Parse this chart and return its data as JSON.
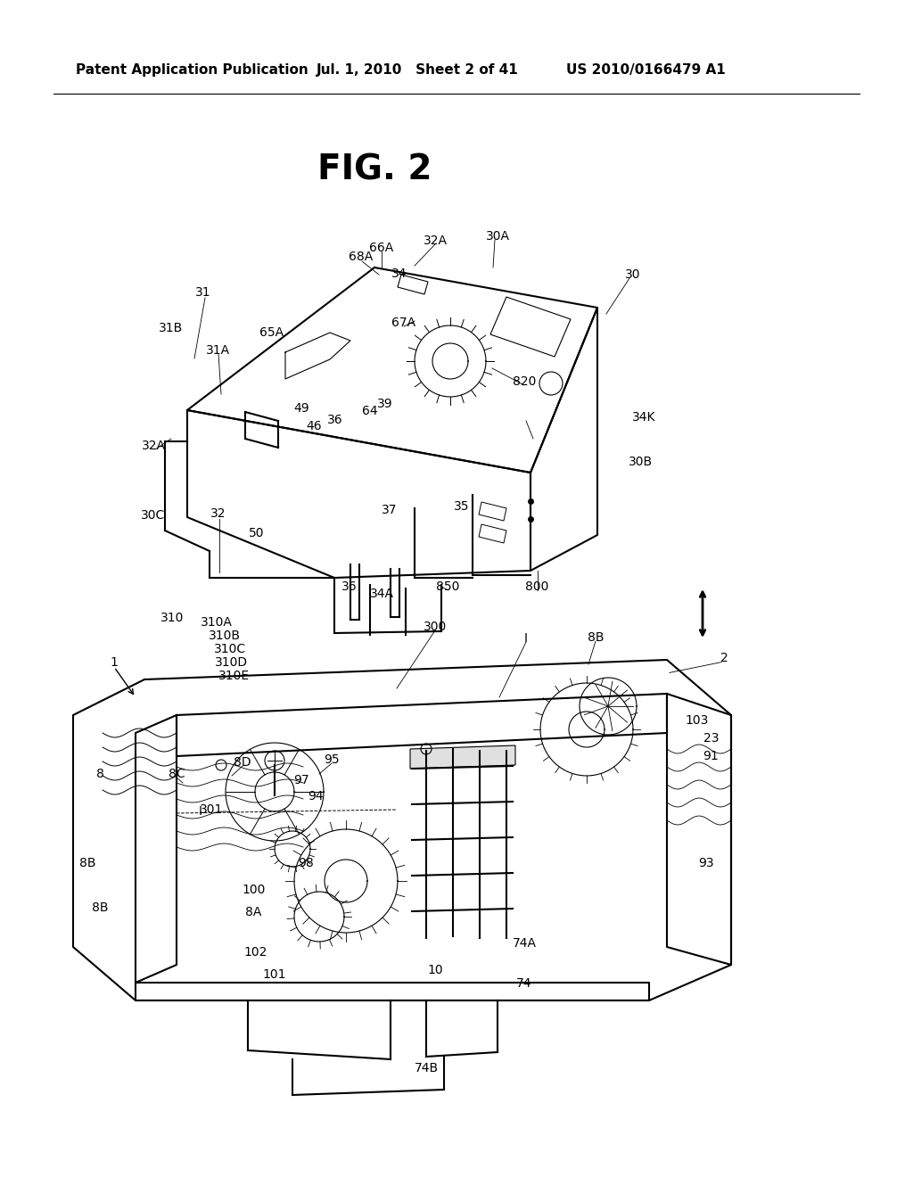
{
  "title": "FIG. 2",
  "header_left": "Patent Application Publication",
  "header_center": "Jul. 1, 2010   Sheet 2 of 41",
  "header_right": "US 2010/0166479 A1",
  "background_color": "#ffffff",
  "line_color": "#000000",
  "text_color": "#000000",
  "header_fontsize": 11,
  "title_fontsize": 28,
  "label_fontsize": 10,
  "fig_width": 10.24,
  "fig_height": 13.2
}
